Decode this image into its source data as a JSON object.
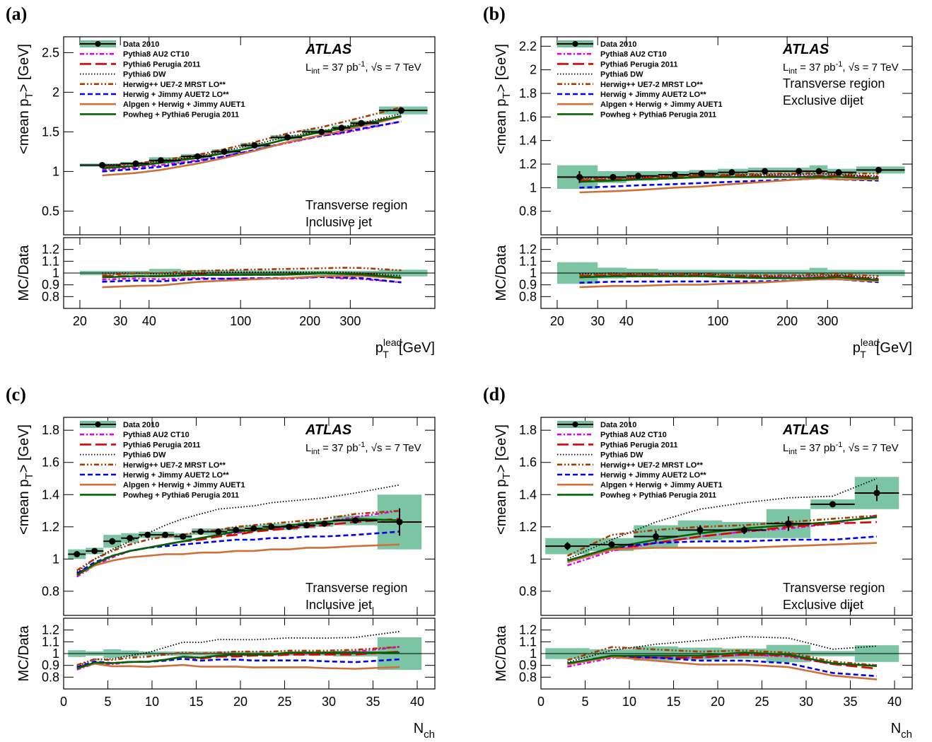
{
  "legend_entries": [
    {
      "label": "Data 2010",
      "color": "#000000",
      "style": "data"
    },
    {
      "label": "Pythia8 AU2 CT10",
      "color": "#e600e6",
      "style": "dashdot"
    },
    {
      "label": "Pythia6 Perugia 2011",
      "color": "#e00000",
      "style": "longdash"
    },
    {
      "label": "Pythia6 DW",
      "color": "#000000",
      "style": "dotted"
    },
    {
      "label": "Herwig++ UE7-2 MRST LO**",
      "color": "#a83a00",
      "style": "dashdotdot"
    },
    {
      "label": "Herwig + Jimmy AUET2 LO**",
      "color": "#0000ee",
      "style": "dashed"
    },
    {
      "label": "Alpgen + Herwig + Jimmy AUET1",
      "color": "#cf6f3a",
      "style": "solid"
    },
    {
      "label": "Powheg + Pythia6 Perugia 2011",
      "color": "#006400",
      "style": "solid"
    }
  ],
  "band_color": "#6ebf9a",
  "atlas_label": "ATLAS",
  "lumi_text": {
    "L": "L",
    "int": "int",
    "eq": " = 37 pb",
    "exp": "-1",
    "sep": ", ",
    "sqrt": "√s",
    "energy": " = 7 TeV"
  },
  "ratio_ylabel": "MC/Data",
  "chart_data": [
    {
      "panel": "(a)",
      "type": "line",
      "xscale": "log",
      "xlabel_main": "p",
      "xlabel_sub": "T",
      "xlabel_sup": "lead",
      "xlabel_unit": "[GeV]",
      "ylabel_main": "<mean p",
      "ylabel_sub": "T",
      "ylabel_unit": "> [GeV]",
      "region": [
        "Transverse region",
        "Inclusive jet"
      ],
      "xlim": [
        17,
        700
      ],
      "ylim": [
        0.2,
        2.7
      ],
      "yticks": [
        0.5,
        1,
        1.5,
        2,
        2.5
      ],
      "xticks": [
        20,
        30,
        40,
        100,
        200,
        300
      ],
      "ratio_ylim": [
        0.7,
        1.3
      ],
      "ratio_yticks": [
        0.8,
        0.9,
        1,
        1.1,
        1.2
      ],
      "data": {
        "x": [
          25,
          35,
          45,
          65,
          85,
          115,
          160,
          225,
          275,
          335,
          500
        ],
        "y": [
          1.08,
          1.1,
          1.14,
          1.19,
          1.25,
          1.33,
          1.43,
          1.5,
          1.55,
          1.61,
          1.77
        ],
        "xerr": [
          [
            20,
            30
          ],
          [
            30,
            40
          ],
          [
            40,
            55
          ],
          [
            55,
            75
          ],
          [
            75,
            100
          ],
          [
            100,
            135
          ],
          [
            135,
            185
          ],
          [
            185,
            250
          ],
          [
            250,
            300
          ],
          [
            300,
            400
          ],
          [
            400,
            650
          ]
        ],
        "band": [
          0.02,
          0.02,
          0.04,
          0.03,
          0.03,
          0.03,
          0.03,
          0.03,
          0.03,
          0.03,
          0.05
        ]
      },
      "series": [
        {
          "name": "Pythia8 AU2 CT10",
          "values": [
            1.02,
            1.05,
            1.08,
            1.14,
            1.19,
            1.27,
            1.36,
            1.45,
            1.48,
            1.53,
            1.63
          ]
        },
        {
          "name": "Pythia6 Perugia 2011",
          "values": [
            1.05,
            1.07,
            1.11,
            1.18,
            1.23,
            1.31,
            1.41,
            1.5,
            1.54,
            1.6,
            1.7
          ]
        },
        {
          "name": "Pythia6 DW",
          "values": [
            1.08,
            1.1,
            1.13,
            1.19,
            1.26,
            1.34,
            1.44,
            1.51,
            1.56,
            1.61,
            1.73
          ]
        },
        {
          "name": "Herwig++ UE7-2 MRST LO**",
          "values": [
            1.06,
            1.1,
            1.14,
            1.21,
            1.28,
            1.37,
            1.48,
            1.56,
            1.62,
            1.68,
            1.81
          ]
        },
        {
          "name": "Herwig + Jimmy AUET2 LO**",
          "values": [
            1.0,
            1.03,
            1.06,
            1.13,
            1.19,
            1.27,
            1.37,
            1.45,
            1.49,
            1.54,
            1.63
          ]
        },
        {
          "name": "Alpgen + Herwig + Jimmy AUET1",
          "values": [
            0.95,
            0.98,
            1.02,
            1.1,
            1.17,
            1.26,
            1.37,
            1.46,
            1.51,
            1.57,
            1.69
          ]
        },
        {
          "name": "Powheg + Pythia6 Perugia 2011",
          "values": [
            1.04,
            1.07,
            1.11,
            1.17,
            1.23,
            1.31,
            1.41,
            1.5,
            1.54,
            1.59,
            1.7
          ]
        }
      ]
    },
    {
      "panel": "(b)",
      "type": "line",
      "xscale": "log",
      "xlabel_main": "p",
      "xlabel_sub": "T",
      "xlabel_sup": "lead",
      "xlabel_unit": "[GeV]",
      "ylabel_main": "<mean p",
      "ylabel_sub": "T",
      "ylabel_unit": "> [GeV]",
      "region": [
        "Transverse region",
        "Exclusive dijet"
      ],
      "xlim": [
        17,
        700
      ],
      "ylim": [
        0.6,
        2.28
      ],
      "yticks": [
        0.8,
        1,
        1.2,
        1.4,
        1.6,
        1.8,
        2,
        2.2
      ],
      "xticks": [
        20,
        30,
        40,
        100,
        200,
        300
      ],
      "ratio_ylim": [
        0.7,
        1.3
      ],
      "ratio_yticks": [
        0.8,
        0.9,
        1,
        1.1,
        1.2
      ],
      "data": {
        "x": [
          25,
          35,
          45,
          65,
          85,
          115,
          160,
          225,
          275,
          335,
          500
        ],
        "y": [
          1.09,
          1.09,
          1.1,
          1.11,
          1.12,
          1.13,
          1.14,
          1.14,
          1.14,
          1.13,
          1.15
        ],
        "xerr": [
          [
            20,
            30
          ],
          [
            30,
            40
          ],
          [
            40,
            55
          ],
          [
            55,
            75
          ],
          [
            75,
            100
          ],
          [
            100,
            135
          ],
          [
            135,
            185
          ],
          [
            185,
            250
          ],
          [
            250,
            300
          ],
          [
            300,
            400
          ],
          [
            400,
            650
          ]
        ],
        "band": [
          0.1,
          0.05,
          0.04,
          0.03,
          0.03,
          0.03,
          0.03,
          0.03,
          0.05,
          0.03,
          0.03
        ]
      },
      "series": [
        {
          "name": "Pythia8 AU2 CT10",
          "values": [
            1.05,
            1.06,
            1.07,
            1.08,
            1.09,
            1.09,
            1.1,
            1.1,
            1.1,
            1.1,
            1.09
          ]
        },
        {
          "name": "Pythia6 Perugia 2011",
          "values": [
            1.06,
            1.07,
            1.08,
            1.09,
            1.1,
            1.1,
            1.1,
            1.09,
            1.1,
            1.1,
            1.09
          ]
        },
        {
          "name": "Pythia6 DW",
          "values": [
            1.08,
            1.09,
            1.09,
            1.1,
            1.11,
            1.11,
            1.11,
            1.11,
            1.12,
            1.11,
            1.1
          ]
        },
        {
          "name": "Herwig++ UE7-2 MRST LO**",
          "values": [
            1.07,
            1.08,
            1.09,
            1.1,
            1.11,
            1.11,
            1.12,
            1.12,
            1.13,
            1.12,
            1.12
          ]
        },
        {
          "name": "Herwig + Jimmy AUET2 LO**",
          "values": [
            1.0,
            1.01,
            1.02,
            1.03,
            1.04,
            1.05,
            1.06,
            1.07,
            1.08,
            1.07,
            1.06
          ]
        },
        {
          "name": "Alpgen + Herwig + Jimmy AUET1",
          "values": [
            0.96,
            0.97,
            0.98,
            1.0,
            1.01,
            1.03,
            1.05,
            1.07,
            1.08,
            1.07,
            1.07
          ]
        },
        {
          "name": "Powheg + Pythia6 Perugia 2011",
          "values": [
            1.05,
            1.06,
            1.07,
            1.08,
            1.09,
            1.09,
            1.09,
            1.09,
            1.09,
            1.09,
            1.08
          ]
        }
      ]
    },
    {
      "panel": "(c)",
      "type": "line",
      "xscale": "linear",
      "xlabel_main": "N",
      "xlabel_sub": "ch",
      "xlabel_sup": "",
      "xlabel_unit": "",
      "ylabel_main": "<mean p",
      "ylabel_sub": "T",
      "ylabel_unit": "> [GeV]",
      "region": [
        "Transverse region",
        "Inclusive jet"
      ],
      "xlim": [
        0,
        42
      ],
      "ylim": [
        0.65,
        1.88
      ],
      "yticks": [
        0.8,
        1,
        1.2,
        1.4,
        1.6,
        1.8
      ],
      "xticks": [
        0,
        5,
        10,
        15,
        20,
        25,
        30,
        35,
        40
      ],
      "ratio_ylim": [
        0.7,
        1.3
      ],
      "ratio_yticks": [
        0.8,
        0.9,
        1,
        1.1,
        1.2
      ],
      "data": {
        "x": [
          1.5,
          3.5,
          5.5,
          7.5,
          9.5,
          11.5,
          13.5,
          15.5,
          17.5,
          19.5,
          21.5,
          23.5,
          25.5,
          27.5,
          29.5,
          33,
          38
        ],
        "y": [
          1.03,
          1.05,
          1.11,
          1.13,
          1.15,
          1.15,
          1.14,
          1.17,
          1.17,
          1.18,
          1.19,
          1.2,
          1.2,
          1.21,
          1.22,
          1.24,
          1.23
        ],
        "xerr": [
          [
            0.5,
            2.5
          ],
          [
            2.5,
            4.5
          ],
          [
            4.5,
            6.5
          ],
          [
            6.5,
            8.5
          ],
          [
            8.5,
            10.5
          ],
          [
            10.5,
            12.5
          ],
          [
            12.5,
            14.5
          ],
          [
            14.5,
            16.5
          ],
          [
            16.5,
            18.5
          ],
          [
            18.5,
            20.5
          ],
          [
            20.5,
            22.5
          ],
          [
            22.5,
            24.5
          ],
          [
            24.5,
            26.5
          ],
          [
            26.5,
            28.5
          ],
          [
            28.5,
            30.5
          ],
          [
            30.5,
            35.5
          ],
          [
            35.5,
            40.5
          ]
        ],
        "band": [
          0.03,
          0.02,
          0.04,
          0.03,
          0.02,
          0.02,
          0.02,
          0.02,
          0.02,
          0.02,
          0.02,
          0.02,
          0.02,
          0.02,
          0.02,
          0.03,
          0.17
        ]
      },
      "series": [
        {
          "name": "Pythia8 AU2 CT10",
          "values": [
            0.89,
            0.96,
            1.01,
            1.05,
            1.07,
            1.09,
            1.11,
            1.13,
            1.15,
            1.16,
            1.18,
            1.19,
            1.2,
            1.21,
            1.23,
            1.26,
            1.3
          ]
        },
        {
          "name": "Pythia6 Perugia 2011",
          "values": [
            0.91,
            0.97,
            1.02,
            1.05,
            1.07,
            1.09,
            1.11,
            1.12,
            1.14,
            1.15,
            1.17,
            1.18,
            1.19,
            1.2,
            1.21,
            1.23,
            1.25
          ]
        },
        {
          "name": "Pythia6 DW",
          "values": [
            0.92,
            1.0,
            1.06,
            1.11,
            1.16,
            1.21,
            1.25,
            1.28,
            1.31,
            1.32,
            1.33,
            1.35,
            1.36,
            1.37,
            1.38,
            1.41,
            1.46
          ]
        },
        {
          "name": "Herwig++ UE7-2 MRST LO**",
          "values": [
            0.93,
            1.0,
            1.05,
            1.09,
            1.12,
            1.14,
            1.15,
            1.17,
            1.18,
            1.2,
            1.21,
            1.22,
            1.23,
            1.24,
            1.25,
            1.28,
            1.3
          ]
        },
        {
          "name": "Herwig + Jimmy AUET2 LO**",
          "values": [
            0.91,
            0.98,
            1.02,
            1.05,
            1.07,
            1.08,
            1.09,
            1.1,
            1.11,
            1.12,
            1.12,
            1.13,
            1.13,
            1.14,
            1.14,
            1.15,
            1.17
          ]
        },
        {
          "name": "Alpgen + Herwig + Jimmy AUET1",
          "values": [
            0.9,
            0.96,
            0.99,
            1.01,
            1.02,
            1.03,
            1.03,
            1.04,
            1.04,
            1.05,
            1.05,
            1.06,
            1.06,
            1.07,
            1.07,
            1.08,
            1.09
          ]
        },
        {
          "name": "Powheg + Pythia6 Perugia 2011",
          "values": [
            0.9,
            0.97,
            1.02,
            1.05,
            1.07,
            1.09,
            1.11,
            1.13,
            1.15,
            1.17,
            1.18,
            1.19,
            1.21,
            1.22,
            1.23,
            1.25,
            1.24
          ]
        }
      ]
    },
    {
      "panel": "(d)",
      "type": "line",
      "xscale": "linear",
      "xlabel_main": "N",
      "xlabel_sub": "ch",
      "xlabel_sup": "",
      "xlabel_unit": "",
      "ylabel_main": "<mean p",
      "ylabel_sub": "T",
      "ylabel_unit": "> [GeV]",
      "region": [
        "Transverse region",
        "Exclusive dijet"
      ],
      "xlim": [
        0,
        42
      ],
      "ylim": [
        0.65,
        1.88
      ],
      "yticks": [
        0.8,
        1,
        1.2,
        1.4,
        1.6,
        1.8
      ],
      "xticks": [
        0,
        5,
        10,
        15,
        20,
        25,
        30,
        35,
        40
      ],
      "ratio_ylim": [
        0.7,
        1.3
      ],
      "ratio_yticks": [
        0.8,
        0.9,
        1,
        1.1,
        1.2
      ],
      "data": {
        "x": [
          3,
          8,
          13,
          18,
          23,
          28,
          33,
          38
        ],
        "y": [
          1.08,
          1.09,
          1.14,
          1.18,
          1.18,
          1.22,
          1.34,
          1.41
        ],
        "xerr": [
          [
            0.5,
            5.5
          ],
          [
            5.5,
            10.5
          ],
          [
            10.5,
            15.5
          ],
          [
            15.5,
            20.5
          ],
          [
            20.5,
            25.5
          ],
          [
            25.5,
            30.5
          ],
          [
            30.5,
            35.5
          ],
          [
            35.5,
            40.5
          ]
        ],
        "band": [
          0.05,
          0.04,
          0.07,
          0.06,
          0.05,
          0.09,
          0.03,
          0.1
        ]
      },
      "series": [
        {
          "name": "Pythia8 AU2 CT10",
          "values": [
            0.96,
            1.05,
            1.1,
            1.14,
            1.17,
            1.19,
            1.22,
            1.27
          ]
        },
        {
          "name": "Pythia6 Perugia 2011",
          "values": [
            0.99,
            1.06,
            1.1,
            1.14,
            1.17,
            1.2,
            1.22,
            1.23
          ]
        },
        {
          "name": "Pythia6 DW",
          "values": [
            1.0,
            1.12,
            1.23,
            1.31,
            1.35,
            1.38,
            1.39,
            1.5
          ]
        },
        {
          "name": "Herwig++ UE7-2 MRST LO**",
          "values": [
            1.02,
            1.15,
            1.18,
            1.2,
            1.21,
            1.23,
            1.25,
            1.27
          ]
        },
        {
          "name": "Herwig + Jimmy AUET2 LO**",
          "values": [
            0.99,
            1.07,
            1.1,
            1.11,
            1.11,
            1.12,
            1.12,
            1.14
          ]
        },
        {
          "name": "Alpgen + Herwig + Jimmy AUET1",
          "values": [
            0.98,
            1.06,
            1.07,
            1.07,
            1.07,
            1.08,
            1.09,
            1.1
          ]
        },
        {
          "name": "Powheg + Pythia6 Perugia 2011",
          "values": [
            0.99,
            1.07,
            1.12,
            1.16,
            1.19,
            1.21,
            1.23,
            1.26
          ]
        }
      ]
    }
  ]
}
